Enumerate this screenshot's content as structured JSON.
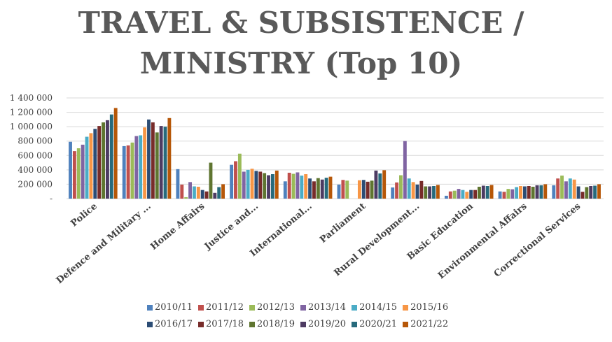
{
  "chart_data": {
    "type": "bar",
    "title_lines": [
      "TRAVEL & SUBSISTENCE /",
      "MINISTRY (Top 10)"
    ],
    "categories": [
      "Police",
      "Defence and Military ...",
      "Home Affairs",
      "Justice and...",
      "International...",
      "Parliament",
      "Rural Development...",
      "Basic Education",
      "Environmental Affairs",
      "Correctional Services"
    ],
    "y_tick_labels": [
      "-",
      "200 000",
      "400 000",
      "600 000",
      "800 000",
      "1 000 000",
      "1 200 000",
      "1 400 000"
    ],
    "y_ticks": [
      0,
      200000,
      400000,
      600000,
      800000,
      1000000,
      1200000,
      1400000
    ],
    "ylim": [
      0,
      1400000
    ],
    "grid": true,
    "legend_position": "bottom",
    "series": [
      {
        "name": "2010/11",
        "color": "#4f81bd",
        "values": [
          790000,
          730000,
          410000,
          470000,
          240000,
          195000,
          155000,
          40000,
          100000,
          185000
        ]
      },
      {
        "name": "2011/12",
        "color": "#c0504d",
        "values": [
          660000,
          740000,
          195000,
          520000,
          360000,
          260000,
          225000,
          100000,
          95000,
          280000
        ]
      },
      {
        "name": "2012/13",
        "color": "#9bbb59",
        "values": [
          700000,
          780000,
          20000,
          625000,
          345000,
          250000,
          325000,
          110000,
          135000,
          320000
        ]
      },
      {
        "name": "2013/14",
        "color": "#8064a2",
        "values": [
          750000,
          870000,
          230000,
          375000,
          365000,
          0,
          800000,
          135000,
          130000,
          240000
        ]
      },
      {
        "name": "2014/15",
        "color": "#4bacc6",
        "values": [
          860000,
          880000,
          170000,
          400000,
          320000,
          0,
          280000,
          120000,
          160000,
          280000
        ]
      },
      {
        "name": "2015/16",
        "color": "#f79646",
        "values": [
          910000,
          990000,
          165000,
          415000,
          340000,
          255000,
          230000,
          95000,
          175000,
          265000
        ]
      },
      {
        "name": "2016/17",
        "color": "#2c4d75",
        "values": [
          970000,
          1100000,
          120000,
          385000,
          280000,
          260000,
          195000,
          120000,
          170000,
          170000
        ]
      },
      {
        "name": "2017/18",
        "color": "#772c2a",
        "values": [
          1010000,
          1060000,
          100000,
          375000,
          240000,
          235000,
          245000,
          120000,
          175000,
          95000
        ]
      },
      {
        "name": "2018/19",
        "color": "#5f7530",
        "values": [
          1060000,
          920000,
          500000,
          355000,
          285000,
          250000,
          170000,
          165000,
          165000,
          160000
        ]
      },
      {
        "name": "2019/20",
        "color": "#4d3b62",
        "values": [
          1090000,
          1010000,
          80000,
          325000,
          265000,
          390000,
          170000,
          180000,
          185000,
          175000
        ]
      },
      {
        "name": "2020/21",
        "color": "#276a7c",
        "values": [
          1170000,
          1000000,
          160000,
          340000,
          290000,
          350000,
          175000,
          175000,
          185000,
          180000
        ]
      },
      {
        "name": "2021/22",
        "color": "#b65708",
        "values": [
          1260000,
          1120000,
          200000,
          390000,
          305000,
          395000,
          190000,
          190000,
          200000,
          200000
        ]
      }
    ]
  }
}
